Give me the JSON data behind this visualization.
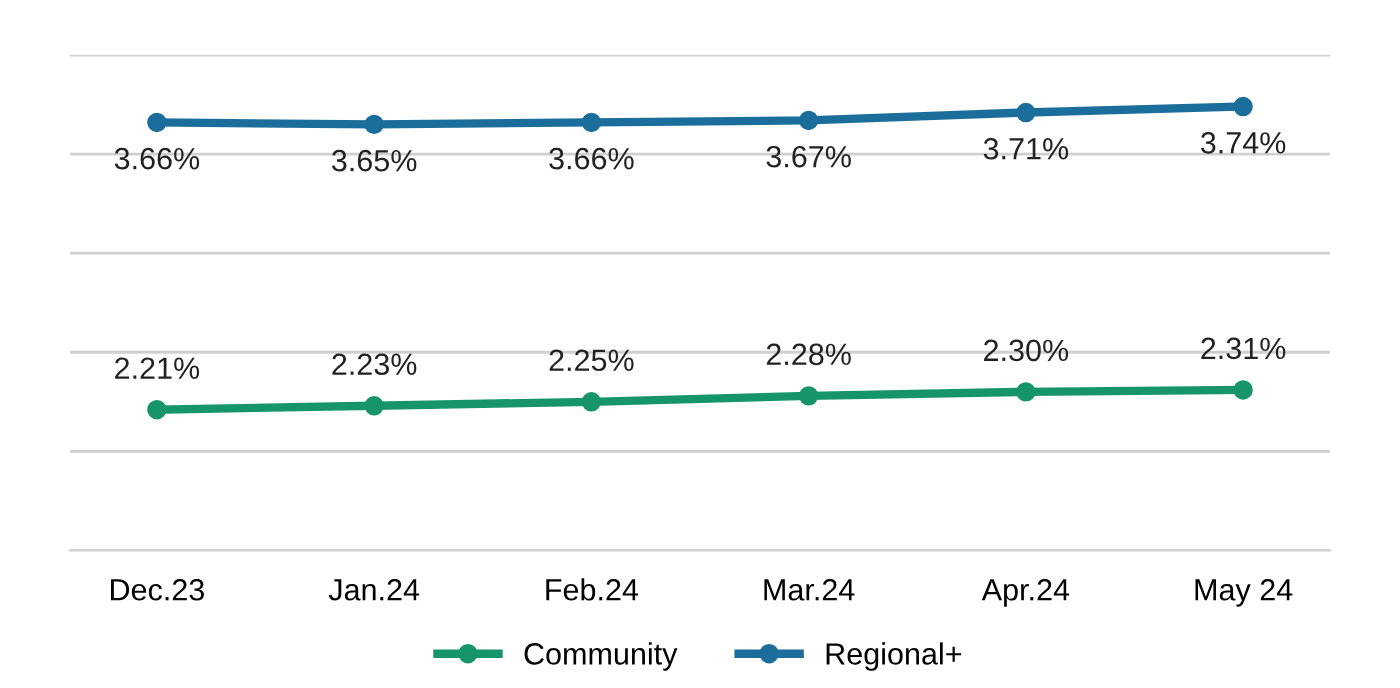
{
  "chart_data": {
    "type": "line",
    "categories": [
      "Dec.23",
      "Jan.24",
      "Feb.24",
      "Mar.24",
      "Apr.24",
      "May 24"
    ],
    "series": [
      {
        "name": "Community",
        "color": "#16956a",
        "values": [
          2.21,
          2.23,
          2.25,
          2.28,
          2.3,
          2.31
        ],
        "value_labels": [
          "2.21%",
          "2.23%",
          "2.25%",
          "2.28%",
          "2.30%",
          "2.31%"
        ]
      },
      {
        "name": "Regional+",
        "color": "#1b6e9b",
        "values": [
          3.66,
          3.65,
          3.66,
          3.67,
          3.71,
          3.74
        ],
        "value_labels": [
          "3.66%",
          "3.65%",
          "3.66%",
          "3.67%",
          "3.71%",
          "3.74%"
        ]
      }
    ],
    "ylim": [
      1.5,
      4.0
    ],
    "yticks": [
      {
        "value": 1.5,
        "label": null
      },
      {
        "value": 2.0,
        "label": null
      },
      {
        "value": 2.5,
        "label": null
      },
      {
        "value": 3.0,
        "label": null
      },
      {
        "value": 3.5,
        "label": null
      },
      {
        "value": 4.0,
        "label": null
      }
    ],
    "tick_labels": "x",
    "grid": "y",
    "legend": "bottom",
    "marker": "circle",
    "line_style": "solid"
  }
}
